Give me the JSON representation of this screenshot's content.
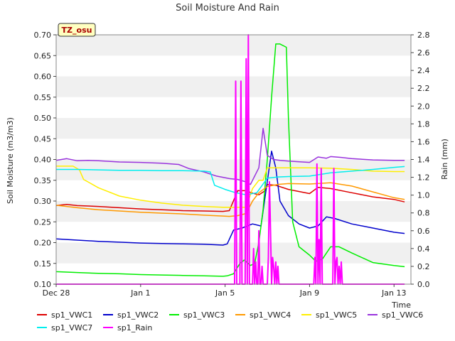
{
  "chart_data": {
    "type": "line",
    "title": "Soil Moisture And Rain",
    "xlabel": "Time",
    "ylabel": "Soil Moisture (m3/m3)",
    "y2label": "Rain (mm)",
    "ylim": [
      0.1,
      0.7
    ],
    "y2lim": [
      0.0,
      2.8
    ],
    "xlim": [
      0,
      16.8
    ],
    "xticks": [
      {
        "x": 0,
        "label": "Dec 28"
      },
      {
        "x": 4,
        "label": "Jan 1"
      },
      {
        "x": 8,
        "label": "Jan 5"
      },
      {
        "x": 12,
        "label": "Jan 9"
      },
      {
        "x": 16,
        "label": "Jan 13"
      }
    ],
    "yticks": [
      0.1,
      0.15,
      0.2,
      0.25,
      0.3,
      0.35,
      0.4,
      0.45,
      0.5,
      0.55,
      0.6,
      0.65,
      0.7
    ],
    "yticklabels": [
      "0.10",
      "0.15",
      "0.20",
      "0.25",
      "0.30",
      "0.35",
      "0.40",
      "0.45",
      "0.50",
      "0.55",
      "0.60",
      "0.65",
      "0.70"
    ],
    "y2ticks": [
      0.0,
      0.2,
      0.4,
      0.6,
      0.8,
      1.0,
      1.2,
      1.4,
      1.6,
      1.8,
      2.0,
      2.2,
      2.4,
      2.6,
      2.8
    ],
    "y2ticklabels": [
      "0.0",
      "0.2",
      "0.4",
      "0.6",
      "0.8",
      "1.0",
      "1.2",
      "1.4",
      "1.6",
      "1.8",
      "2.0",
      "2.2",
      "2.4",
      "2.6",
      "2.8"
    ],
    "grid": "horizontal bands",
    "site_tag": "TZ_osu",
    "series": [
      {
        "name": "sp1_VWC1",
        "color": "#dd0000",
        "axis": "left",
        "x": [
          0,
          0.5,
          1,
          2,
          3,
          4,
          5,
          6,
          7,
          7.9,
          8.2,
          8.6,
          9,
          9.3,
          9.6,
          9.9,
          10,
          10.4,
          11,
          12,
          12.4,
          13,
          14,
          15,
          16,
          16.5
        ],
        "y": [
          0.289,
          0.292,
          0.289,
          0.287,
          0.284,
          0.281,
          0.279,
          0.277,
          0.276,
          0.275,
          0.277,
          0.325,
          0.325,
          0.319,
          0.315,
          0.325,
          0.34,
          0.338,
          0.328,
          0.318,
          0.333,
          0.33,
          0.32,
          0.31,
          0.304,
          0.298
        ]
      },
      {
        "name": "sp1_VWC2",
        "color": "#0000cc",
        "axis": "left",
        "x": [
          0,
          1,
          2,
          3,
          4,
          5,
          6,
          7,
          7.9,
          8.1,
          8.4,
          8.8,
          9.3,
          9.7,
          10.2,
          10.4,
          10.6,
          11,
          11.5,
          12,
          12.4,
          12.8,
          13.2,
          14,
          15,
          16,
          16.5
        ],
        "y": [
          0.209,
          0.206,
          0.203,
          0.201,
          0.199,
          0.198,
          0.197,
          0.196,
          0.194,
          0.197,
          0.23,
          0.235,
          0.245,
          0.24,
          0.42,
          0.38,
          0.3,
          0.265,
          0.245,
          0.235,
          0.24,
          0.262,
          0.258,
          0.245,
          0.235,
          0.225,
          0.222
        ]
      },
      {
        "name": "sp1_VWC3",
        "color": "#00ee00",
        "axis": "left",
        "x": [
          0,
          1,
          2,
          3,
          4,
          5,
          6,
          7,
          7.9,
          8.1,
          8.4,
          8.7,
          8.9,
          9.2,
          9.4,
          9.6,
          9.8,
          10,
          10.2,
          10.4,
          10.6,
          10.9,
          11,
          11.2,
          11.5,
          12,
          12.3,
          12.6,
          13,
          13.4,
          14,
          15,
          16,
          16.5
        ],
        "y": [
          0.13,
          0.128,
          0.126,
          0.125,
          0.123,
          0.122,
          0.121,
          0.12,
          0.119,
          0.12,
          0.125,
          0.15,
          0.158,
          0.145,
          0.15,
          0.2,
          0.28,
          0.4,
          0.55,
          0.678,
          0.678,
          0.67,
          0.5,
          0.25,
          0.19,
          0.17,
          0.155,
          0.16,
          0.19,
          0.19,
          0.175,
          0.152,
          0.145,
          0.142
        ]
      },
      {
        "name": "sp1_VWC4",
        "color": "#ff9900",
        "axis": "left",
        "x": [
          0,
          1,
          2,
          3,
          4,
          5,
          6,
          7,
          7.9,
          8.2,
          8.6,
          9,
          9.3,
          9.6,
          10,
          10.5,
          11,
          12,
          13,
          14,
          15,
          16,
          16.5
        ],
        "y": [
          0.29,
          0.284,
          0.279,
          0.276,
          0.273,
          0.271,
          0.269,
          0.266,
          0.264,
          0.263,
          0.265,
          0.27,
          0.3,
          0.32,
          0.335,
          0.34,
          0.342,
          0.341,
          0.344,
          0.336,
          0.322,
          0.308,
          0.304
        ]
      },
      {
        "name": "sp1_VWC5",
        "color": "#ffee00",
        "axis": "left",
        "x": [
          0,
          0.8,
          1.1,
          1.3,
          2,
          3,
          4,
          5,
          6,
          7,
          7.9,
          8.2,
          8.6,
          9,
          9.3,
          9.6,
          9.8,
          10,
          11,
          12,
          13,
          14,
          15,
          16,
          16.5
        ],
        "y": [
          0.384,
          0.384,
          0.375,
          0.352,
          0.332,
          0.312,
          0.302,
          0.295,
          0.29,
          0.287,
          0.285,
          0.285,
          0.285,
          0.285,
          0.33,
          0.35,
          0.35,
          0.38,
          0.38,
          0.38,
          0.379,
          0.376,
          0.372,
          0.371,
          0.371
        ]
      },
      {
        "name": "sp1_VWC6",
        "color": "#9933dd",
        "axis": "left",
        "x": [
          0,
          0.5,
          1,
          1.5,
          2,
          3,
          4,
          5,
          5.8,
          6.3,
          7,
          7.6,
          8.2,
          8.6,
          9,
          9.2,
          9.6,
          9.8,
          10,
          10.3,
          10.6,
          11,
          12,
          12.4,
          12.8,
          13,
          13.5,
          14,
          15,
          16,
          16.5
        ],
        "y": [
          0.398,
          0.402,
          0.397,
          0.398,
          0.397,
          0.394,
          0.393,
          0.391,
          0.388,
          0.378,
          0.37,
          0.36,
          0.354,
          0.352,
          0.346,
          0.34,
          0.38,
          0.475,
          0.41,
          0.4,
          0.398,
          0.396,
          0.393,
          0.406,
          0.403,
          0.407,
          0.405,
          0.402,
          0.399,
          0.398,
          0.398
        ]
      },
      {
        "name": "sp1_VWC7",
        "color": "#00eeee",
        "axis": "left",
        "x": [
          0,
          1,
          2,
          3,
          4,
          5,
          6,
          7,
          7.3,
          7.5,
          8,
          8.5,
          9,
          9.5,
          10,
          10.5,
          11,
          12,
          13,
          14,
          15,
          16,
          16.5
        ],
        "y": [
          0.376,
          0.376,
          0.375,
          0.374,
          0.374,
          0.373,
          0.373,
          0.372,
          0.37,
          0.338,
          0.328,
          0.32,
          0.315,
          0.32,
          0.355,
          0.358,
          0.359,
          0.36,
          0.368,
          0.372,
          0.376,
          0.381,
          0.383
        ]
      },
      {
        "name": "sp1_Rain",
        "color": "#ff00ff",
        "axis": "right",
        "x": [
          0,
          8.45,
          8.5,
          8.55,
          8.6,
          8.7,
          8.75,
          8.8,
          8.85,
          8.95,
          9.0,
          9.05,
          9.1,
          9.15,
          9.2,
          9.3,
          9.35,
          9.4,
          9.45,
          9.5,
          9.55,
          9.6,
          9.65,
          9.7,
          9.75,
          9.8,
          10.0,
          10.05,
          10.1,
          10.15,
          10.2,
          10.25,
          10.3,
          10.35,
          10.4,
          10.45,
          10.5,
          10.55,
          12.2,
          12.25,
          12.3,
          12.35,
          12.4,
          12.45,
          12.5,
          12.55,
          12.6,
          12.65,
          12.7,
          13.1,
          13.15,
          13.2,
          13.25,
          13.3,
          13.35,
          13.4,
          13.45,
          13.5,
          13.55,
          16.5
        ],
        "y": [
          0,
          0,
          2.28,
          0,
          0,
          0,
          2.28,
          0,
          0,
          0,
          2.53,
          0,
          2.8,
          0,
          0,
          0,
          0.4,
          0,
          0.25,
          0,
          0,
          0.6,
          0,
          0,
          0.2,
          0,
          0,
          0.3,
          1.15,
          0.6,
          0,
          0.3,
          0.2,
          0,
          0.25,
          0,
          0.2,
          0,
          0,
          0.3,
          0,
          1.35,
          0,
          0.5,
          0,
          1.3,
          0,
          0,
          0,
          0,
          1.3,
          0,
          0.25,
          0.3,
          0,
          0.2,
          0,
          0.25,
          0,
          0
        ]
      }
    ]
  }
}
